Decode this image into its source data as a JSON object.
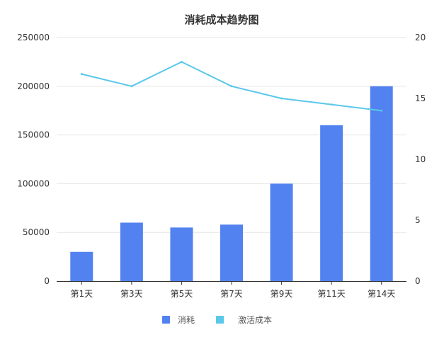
{
  "chart_data": {
    "type": "bar",
    "title": "消耗成本趋势图",
    "categories": [
      "第1天",
      "第3天",
      "第5天",
      "第7天",
      "第9天",
      "第11天",
      "第14天"
    ],
    "series": [
      {
        "name": "消耗",
        "type": "bar",
        "axis": "left",
        "color": "#5182f0",
        "values": [
          30000,
          60000,
          55000,
          58000,
          100000,
          160000,
          200000
        ]
      },
      {
        "name": "激活成本",
        "type": "line",
        "axis": "right",
        "color": "#5ac8ea",
        "values": [
          17,
          16,
          18,
          16,
          15,
          14.5,
          14
        ]
      }
    ],
    "y_left": {
      "min": 0,
      "max": 250000,
      "ticks": [
        0,
        50000,
        100000,
        150000,
        200000,
        250000
      ]
    },
    "y_right": {
      "min": 0,
      "max": 20,
      "ticks": [
        0,
        5,
        10,
        15,
        20
      ]
    },
    "grid": true,
    "legend": "bottom"
  }
}
